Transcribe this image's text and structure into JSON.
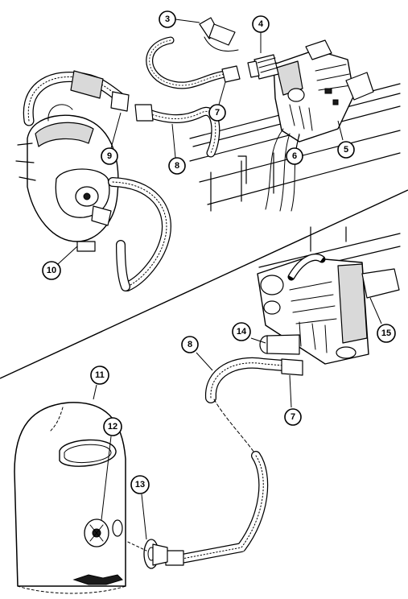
{
  "colors": {
    "ink": "#000000",
    "paper": "#ffffff",
    "shade": "#d9d9d9"
  },
  "callouts": [
    {
      "id": "c3",
      "label": "3"
    },
    {
      "id": "c4",
      "label": "4"
    },
    {
      "id": "c5",
      "label": "5"
    },
    {
      "id": "c6",
      "label": "6"
    },
    {
      "id": "c7",
      "label": "7"
    },
    {
      "id": "c8",
      "label": "8"
    },
    {
      "id": "c9",
      "label": "9"
    },
    {
      "id": "c10",
      "label": "10"
    },
    {
      "id": "c11",
      "label": "11"
    },
    {
      "id": "c12",
      "label": "12"
    },
    {
      "id": "c13",
      "label": "13"
    },
    {
      "id": "c14",
      "label": "14"
    },
    {
      "id": "c15",
      "label": "15"
    },
    {
      "id": "c7b",
      "label": "7"
    },
    {
      "id": "c8b",
      "label": "8"
    }
  ]
}
